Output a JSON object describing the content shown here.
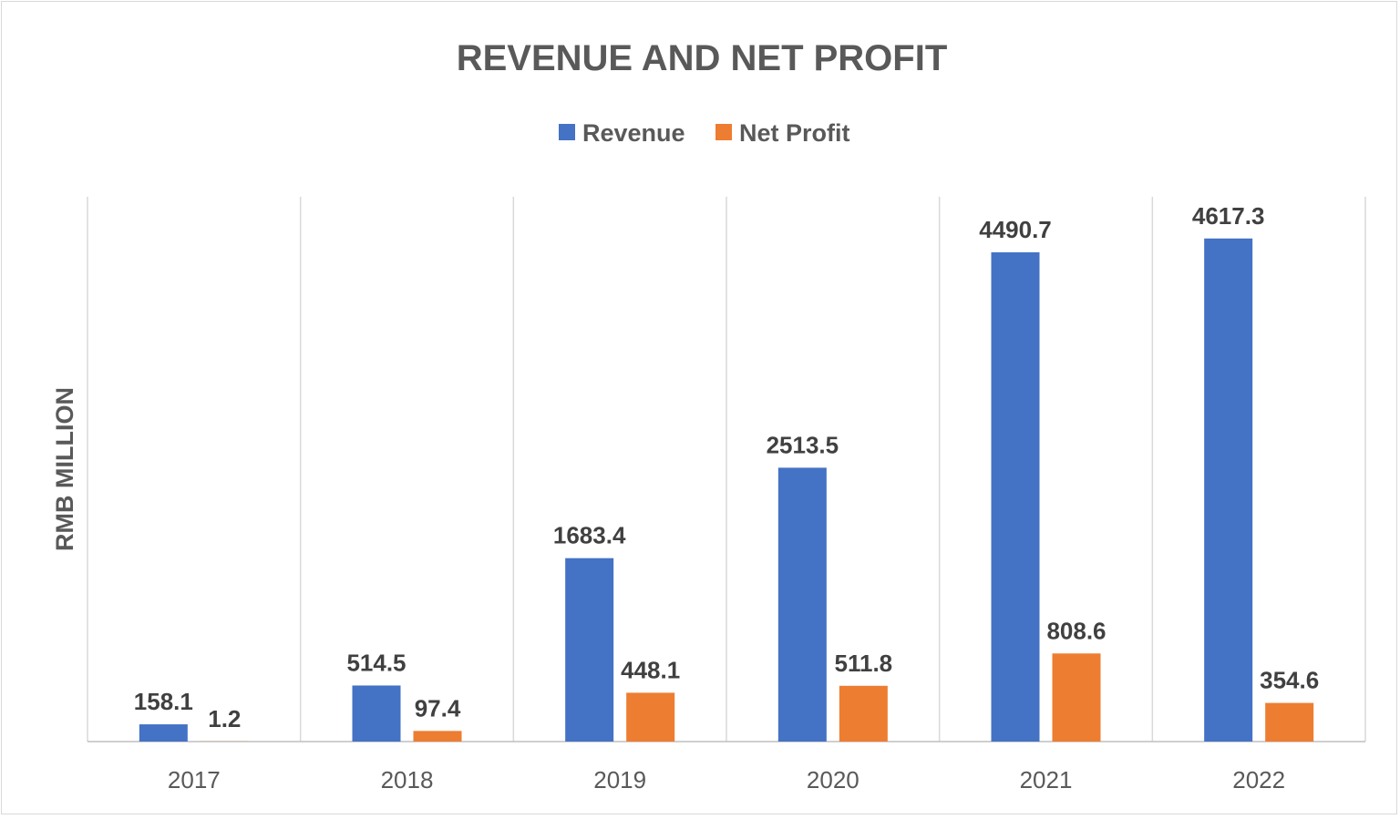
{
  "chart_data": {
    "type": "bar",
    "title": "REVENUE AND NET PROFIT",
    "ylabel": "RMB MILLION",
    "xlabel": "",
    "categories": [
      "2017",
      "2018",
      "2019",
      "2020",
      "2021",
      "2022"
    ],
    "series": [
      {
        "name": "Revenue",
        "color": "#4472c4",
        "values": [
          158.1,
          514.5,
          1683.4,
          2513.5,
          4490.7,
          4617.3
        ]
      },
      {
        "name": "Net Profit",
        "color": "#ed7d31",
        "values": [
          1.2,
          97.4,
          448.1,
          511.8,
          808.6,
          354.6
        ]
      }
    ],
    "ylim": [
      0,
      5000
    ],
    "grid": "vertical category separators",
    "legend": "top-center",
    "data_labels": true
  }
}
